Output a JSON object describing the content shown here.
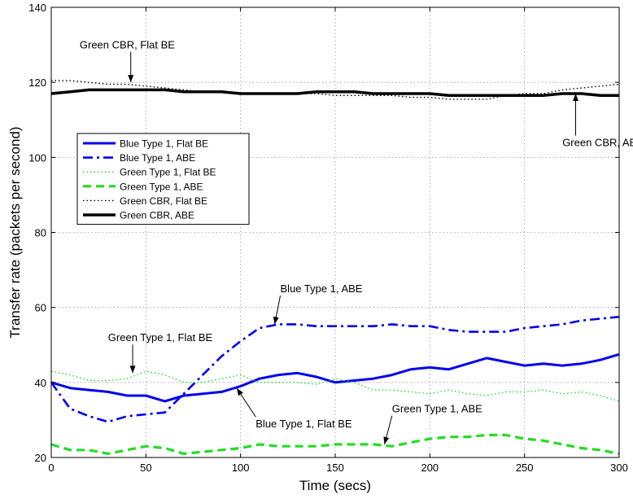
{
  "chart_data": {
    "type": "line",
    "title": "",
    "xlabel": "Time (secs)",
    "ylabel": "Transfer rate (packets per second)",
    "xlim": [
      0,
      300
    ],
    "ylim": [
      20,
      140
    ],
    "xticks": [
      0,
      50,
      100,
      150,
      200,
      250,
      300
    ],
    "yticks": [
      20,
      40,
      60,
      80,
      100,
      120,
      140
    ],
    "grid": true,
    "legend_position": "upper-left",
    "x": [
      0,
      10,
      20,
      30,
      40,
      50,
      60,
      70,
      80,
      90,
      100,
      110,
      120,
      130,
      140,
      150,
      160,
      170,
      180,
      190,
      200,
      210,
      220,
      230,
      240,
      250,
      260,
      270,
      280,
      290,
      300
    ],
    "series": [
      {
        "name": "Blue Type 1, Flat BE",
        "color": "#0000ee",
        "style": "solid",
        "values": [
          40,
          38.5,
          38,
          37.5,
          36.5,
          36.5,
          35,
          36.5,
          37,
          37.5,
          39,
          41,
          42,
          42.5,
          41.5,
          40,
          40.5,
          41,
          42,
          43.5,
          44,
          43.5,
          45,
          46.5,
          45.5,
          44.5,
          45,
          44.5,
          45,
          46,
          47.5
        ]
      },
      {
        "name": "Blue Type 1, ABE",
        "color": "#0000ee",
        "style": "dashdot",
        "values": [
          40,
          33,
          31,
          29.5,
          31,
          31.5,
          32,
          37,
          42,
          47,
          51,
          54.5,
          55.5,
          55.5,
          55,
          55,
          55,
          55,
          55.5,
          55,
          55,
          54,
          53.5,
          53.5,
          53.5,
          54.5,
          55,
          55.5,
          56.5,
          57,
          57.5
        ]
      },
      {
        "name": "Green Type 1, Flat BE",
        "color": "#22dd22",
        "style": "dotted",
        "values": [
          43,
          42,
          40.5,
          40.5,
          41,
          43,
          42,
          40,
          40,
          41,
          42,
          40,
          40,
          40,
          39.5,
          41,
          40,
          38,
          38,
          37.5,
          37,
          38,
          37,
          36.5,
          37.5,
          37.5,
          38,
          37,
          37.5,
          36.5,
          35
        ]
      },
      {
        "name": "Green Type 1, ABE",
        "color": "#22dd22",
        "style": "dashed",
        "values": [
          23.5,
          22,
          22,
          21,
          22,
          23,
          22.5,
          21,
          21.5,
          22,
          22.5,
          23.5,
          23,
          23,
          23,
          23.5,
          23.5,
          23.5,
          23,
          24,
          25,
          25.5,
          25.5,
          26,
          26,
          25,
          24.5,
          23.5,
          22.5,
          22,
          21
        ]
      },
      {
        "name": "Green CBR, Flat BE",
        "color": "#000000",
        "style": "dotted",
        "values": [
          120.5,
          120.5,
          120,
          119.5,
          119.5,
          119,
          118.5,
          118,
          117.5,
          117.5,
          117,
          117,
          117,
          117,
          117,
          116.5,
          116.5,
          116.5,
          116.5,
          116,
          116,
          115.5,
          115.5,
          115.5,
          116.5,
          117,
          117,
          118,
          118.5,
          119,
          119.5
        ]
      },
      {
        "name": "Green CBR, ABE",
        "color": "#000000",
        "style": "solid-thick",
        "values": [
          117,
          117.5,
          118,
          118,
          118,
          118,
          118,
          117.5,
          117.5,
          117.5,
          117,
          117,
          117,
          117,
          117.5,
          117.5,
          117.5,
          117,
          117,
          117,
          117,
          116.5,
          116.5,
          116.5,
          116.5,
          116.5,
          116.5,
          117,
          117,
          116.5,
          116.5
        ]
      }
    ],
    "annotations": [
      {
        "text": "Green CBR, Flat BE",
        "x": 42,
        "y": 120,
        "label_x": 15,
        "label_y": 129
      },
      {
        "text": "Green CBR, ABE",
        "x": 277,
        "y": 117,
        "label_x": 270,
        "label_y": 103
      },
      {
        "text": "Blue Type 1, ABE",
        "x": 118,
        "y": 55.5,
        "label_x": 121,
        "label_y": 64
      },
      {
        "text": "Green Type 1, Flat BE",
        "x": 43,
        "y": 42.5,
        "label_x": 30,
        "label_y": 51
      },
      {
        "text": "Blue Type 1, Flat BE",
        "x": 98,
        "y": 38.5,
        "label_x": 108,
        "label_y": 28
      },
      {
        "text": "Green Type 1, ABE",
        "x": 176,
        "y": 23.5,
        "label_x": 180,
        "label_y": 32
      }
    ]
  }
}
